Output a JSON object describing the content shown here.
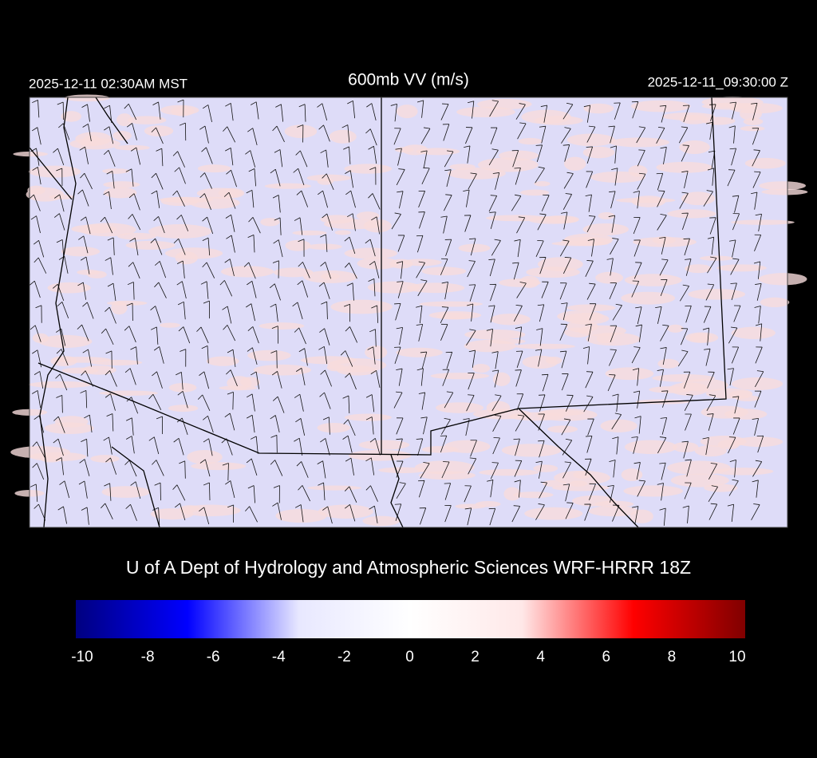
{
  "header": {
    "title": "600mb VV (m/s)",
    "local_time": "2025-12-11 02:30AM MST",
    "valid_time": "2025-12-11_09:30:00 Z"
  },
  "caption": "U of A Dept of Hydrology and Atmospheric Sciences WRF-HRRR 18Z",
  "colorbar": {
    "range": [
      -10,
      10
    ],
    "ticks": [
      -10,
      -8,
      -6,
      -4,
      -2,
      0,
      2,
      4,
      6,
      8,
      10
    ],
    "colors": [
      "#000080",
      "#0000ff",
      "#e8e8ff",
      "#ffffff",
      "#ffe8e8",
      "#ff0000",
      "#800000"
    ]
  }
}
